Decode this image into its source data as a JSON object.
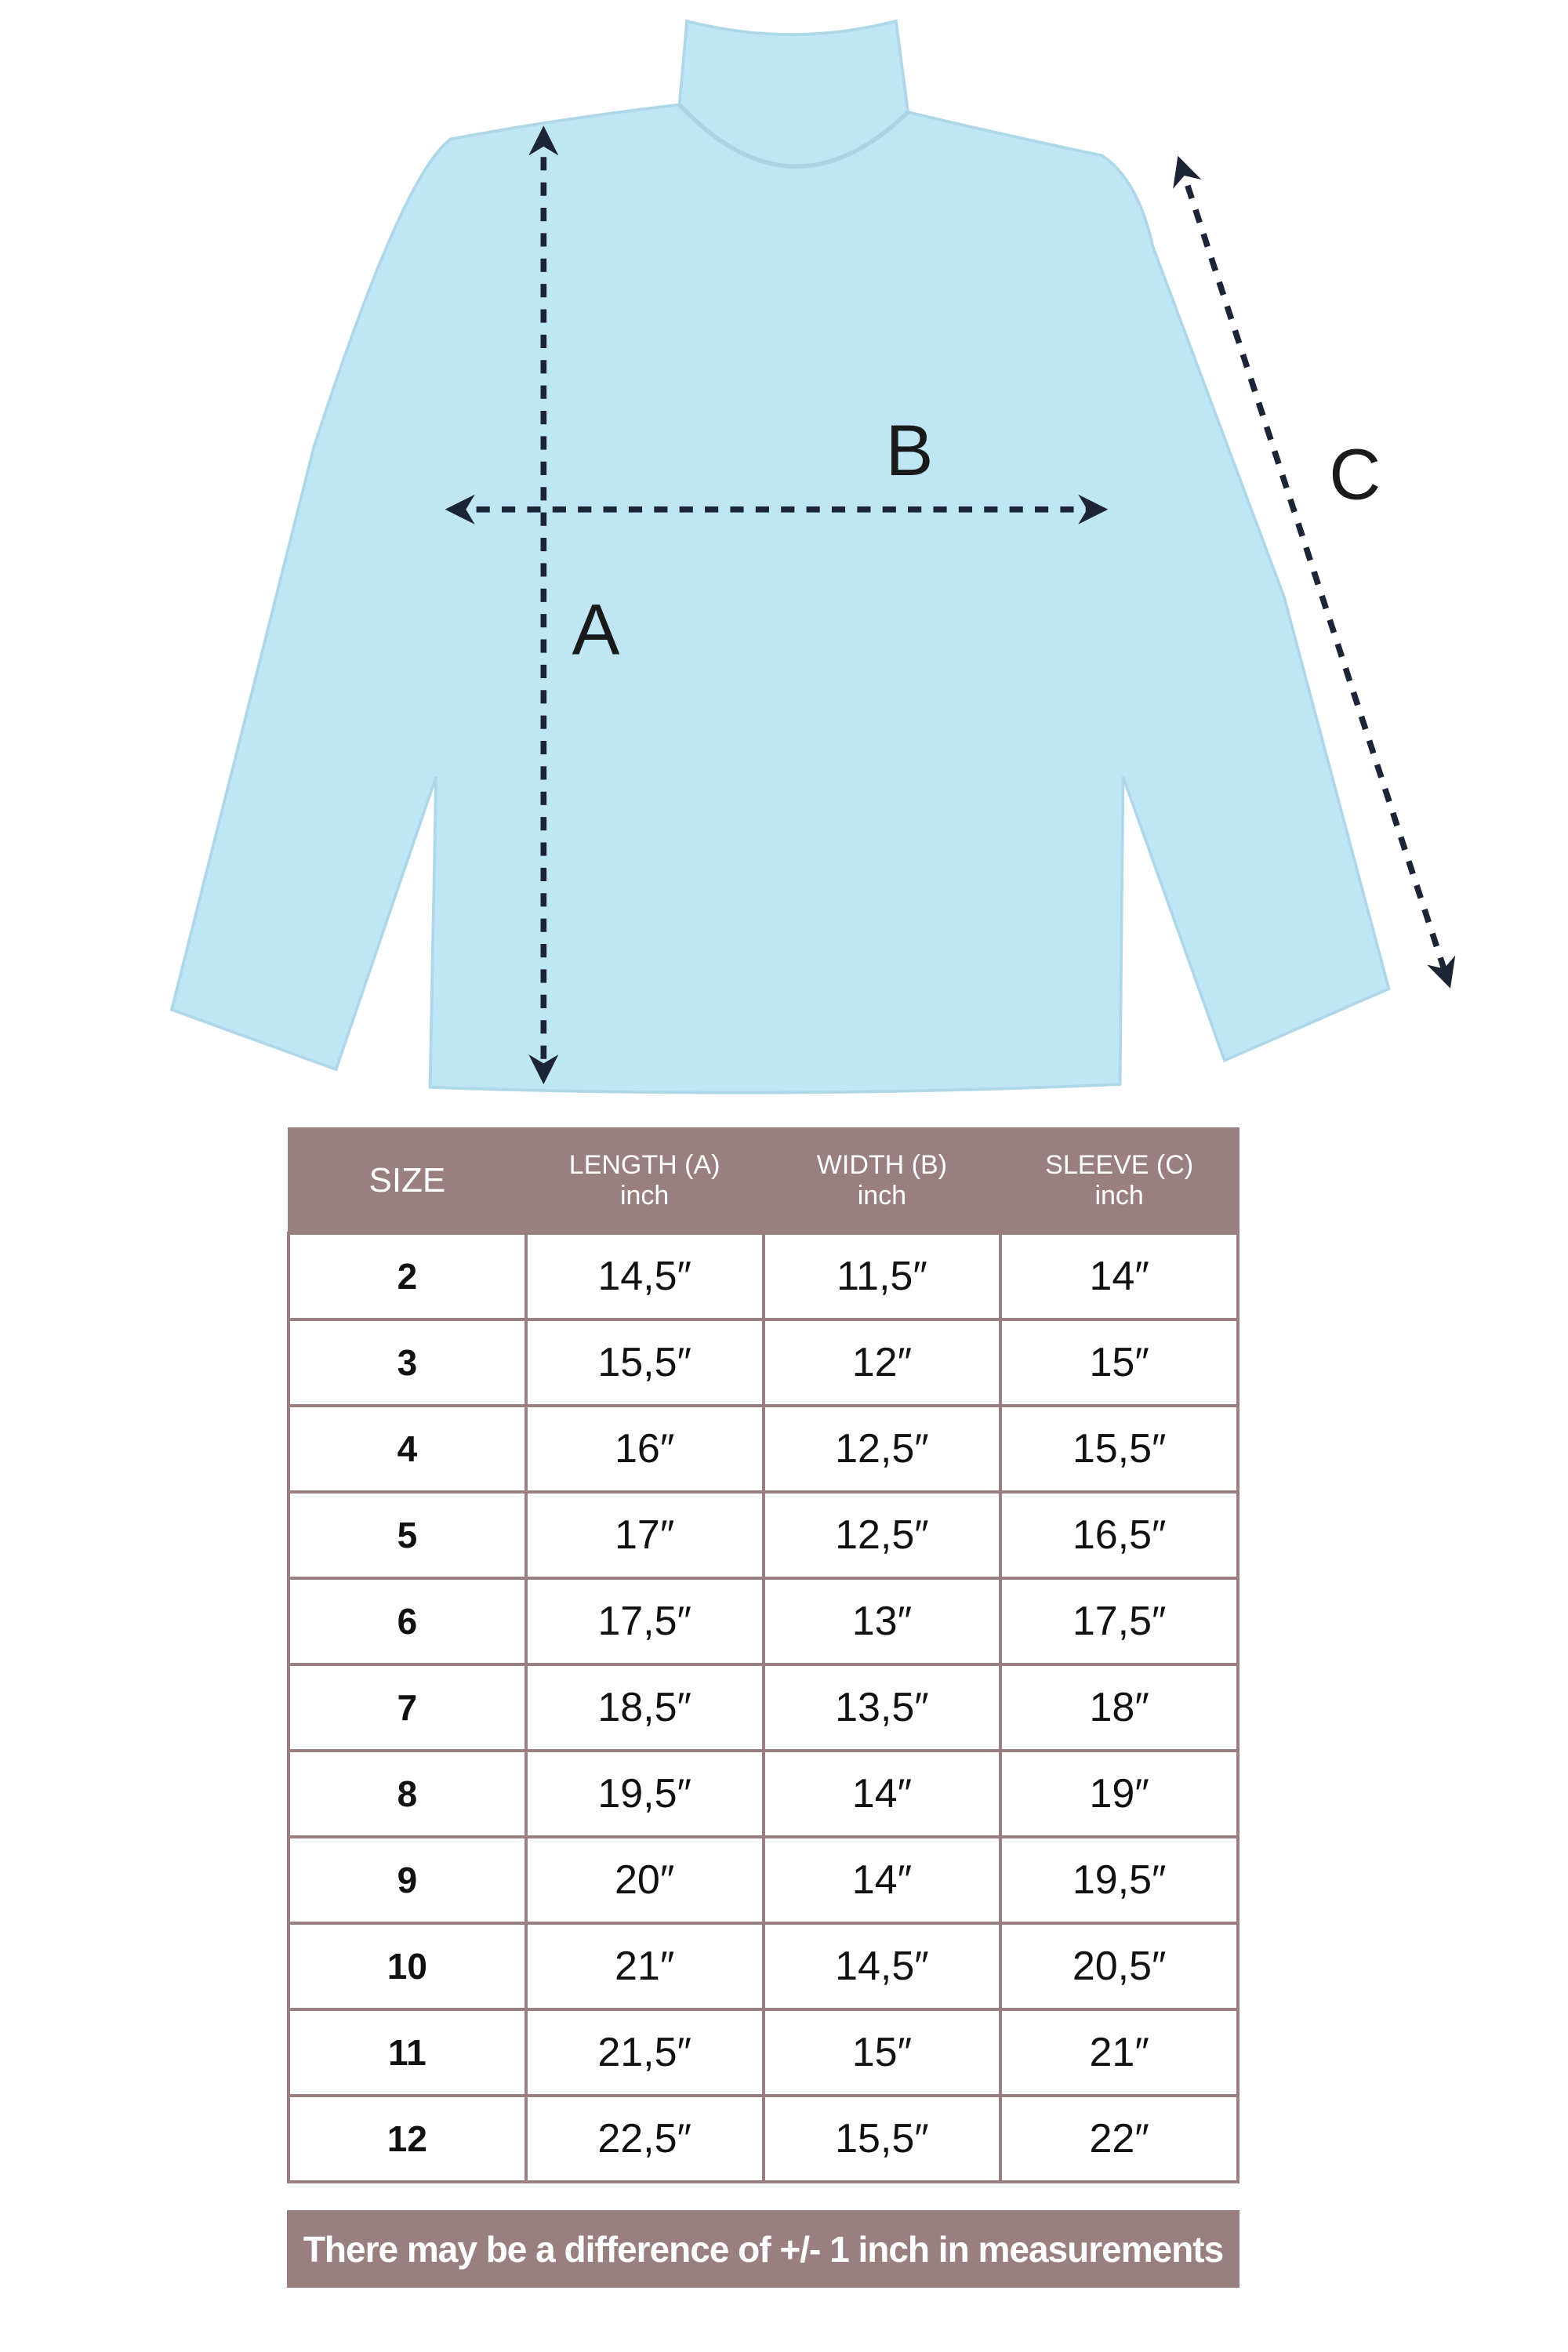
{
  "diagram": {
    "labels": {
      "a": "A",
      "b": "B",
      "c": "C"
    },
    "colors": {
      "shirt": "#bfe6f5",
      "arrow": "#1c2535",
      "accent": "#9a7f80"
    }
  },
  "table": {
    "headers": [
      {
        "title": "SIZE",
        "unit": ""
      },
      {
        "title": "LENGTH (A)",
        "unit": "inch"
      },
      {
        "title": "WIDTH (B)",
        "unit": "inch"
      },
      {
        "title": "SLEEVE (C)",
        "unit": "inch"
      }
    ],
    "rows": [
      [
        "2",
        "14,5″",
        "11,5″",
        "14″"
      ],
      [
        "3",
        "15,5″",
        "12″",
        "15″"
      ],
      [
        "4",
        "16″",
        "12,5″",
        "15,5″"
      ],
      [
        "5",
        "17″",
        "12,5″",
        "16,5″"
      ],
      [
        "6",
        "17,5″",
        "13″",
        "17,5″"
      ],
      [
        "7",
        "18,5″",
        "13,5″",
        "18″"
      ],
      [
        "8",
        "19,5″",
        "14″",
        "19″"
      ],
      [
        "9",
        "20″",
        "14″",
        "19,5″"
      ],
      [
        "10",
        "21″",
        "14,5″",
        "20,5″"
      ],
      [
        "11",
        "21,5″",
        "15″",
        "21″"
      ],
      [
        "12",
        "22,5″",
        "15,5″",
        "22″"
      ]
    ]
  },
  "note": "There may be a difference of +/- 1 inch in measurements"
}
